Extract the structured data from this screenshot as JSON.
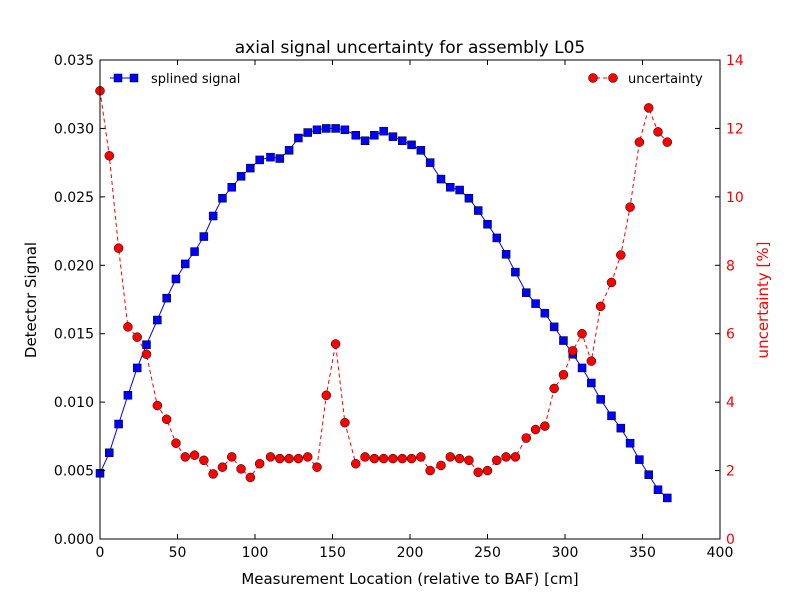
{
  "chart_data": {
    "type": "line",
    "title": "axial signal uncertainty for assembly L05",
    "xlabel": "Measurement Location (relative to BAF) [cm]",
    "ylabel": "Detector Signal",
    "y2label": "uncertainty [%]",
    "xlim": [
      0,
      400
    ],
    "ylim": [
      0,
      0.035
    ],
    "y2lim": [
      0,
      14
    ],
    "x_ticks": [
      "0",
      "50",
      "100",
      "150",
      "200",
      "250",
      "300",
      "350",
      "400"
    ],
    "y_ticks": [
      "0.000",
      "0.005",
      "0.010",
      "0.015",
      "0.020",
      "0.025",
      "0.030",
      "0.035"
    ],
    "y2_ticks": [
      "0",
      "2",
      "4",
      "6",
      "8",
      "10",
      "12",
      "14"
    ],
    "legend_left": "top-left",
    "legend_right": "top-right",
    "colors": {
      "signal": "#0000ff",
      "uncertainty": "#ff0000",
      "axis": "#000000"
    },
    "series": [
      {
        "name": "splined signal",
        "axis": "left",
        "style": "solid-square",
        "x": [
          0,
          6,
          12,
          18,
          24,
          30,
          37,
          43,
          49,
          55,
          61,
          67,
          73,
          79,
          85,
          91,
          97,
          103,
          110,
          116,
          122,
          128,
          134,
          140,
          146,
          152,
          158,
          165,
          171,
          177,
          183,
          189,
          195,
          201,
          207,
          213,
          220,
          226,
          232,
          238,
          244,
          250,
          256,
          262,
          268,
          275,
          281,
          287,
          293,
          299,
          305,
          311,
          317,
          323,
          330,
          336,
          342,
          348,
          354,
          360,
          366
        ],
        "y": [
          0.0048,
          0.0063,
          0.0084,
          0.0105,
          0.0125,
          0.0142,
          0.016,
          0.0176,
          0.019,
          0.0201,
          0.021,
          0.0221,
          0.0236,
          0.0249,
          0.0257,
          0.0265,
          0.0271,
          0.0277,
          0.0279,
          0.0278,
          0.0284,
          0.0293,
          0.0297,
          0.0299,
          0.03,
          0.03,
          0.0299,
          0.0295,
          0.0291,
          0.0295,
          0.0298,
          0.0294,
          0.0291,
          0.0288,
          0.0284,
          0.0275,
          0.0263,
          0.0257,
          0.0255,
          0.0249,
          0.024,
          0.023,
          0.022,
          0.0208,
          0.0195,
          0.018,
          0.0172,
          0.0165,
          0.0155,
          0.0145,
          0.0135,
          0.0125,
          0.0114,
          0.0102,
          0.009,
          0.0081,
          0.007,
          0.0058,
          0.0047,
          0.0036,
          0.003
        ]
      },
      {
        "name": "uncertainty",
        "axis": "right",
        "style": "dashed-circle",
        "x": [
          0,
          6,
          12,
          18,
          24,
          30,
          37,
          43,
          49,
          55,
          61,
          67,
          73,
          79,
          85,
          91,
          97,
          103,
          110,
          116,
          122,
          128,
          134,
          140,
          146,
          152,
          158,
          165,
          171,
          177,
          183,
          189,
          195,
          201,
          207,
          213,
          220,
          226,
          232,
          238,
          244,
          250,
          256,
          262,
          268,
          275,
          281,
          287,
          293,
          299,
          305,
          311,
          317,
          323,
          330,
          336,
          342,
          348,
          354,
          360,
          366
        ],
        "y": [
          13.1,
          11.2,
          8.5,
          6.2,
          5.9,
          5.4,
          3.9,
          3.5,
          2.8,
          2.4,
          2.45,
          2.3,
          1.9,
          2.1,
          2.4,
          2.05,
          1.8,
          2.2,
          2.4,
          2.35,
          2.35,
          2.35,
          2.4,
          2.1,
          4.2,
          5.7,
          3.4,
          2.2,
          2.4,
          2.35,
          2.35,
          2.35,
          2.35,
          2.35,
          2.4,
          2.0,
          2.15,
          2.4,
          2.35,
          2.3,
          1.95,
          2.0,
          2.3,
          2.4,
          2.4,
          2.95,
          3.2,
          3.3,
          4.4,
          4.8,
          5.5,
          6.0,
          5.2,
          6.8,
          7.5,
          8.3,
          9.7,
          11.6,
          12.6,
          11.9,
          11.6
        ]
      }
    ]
  }
}
